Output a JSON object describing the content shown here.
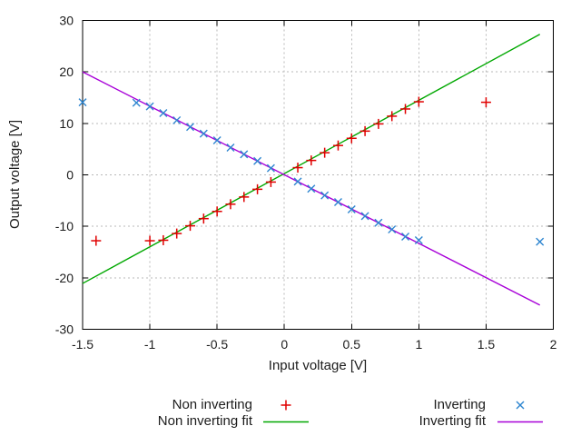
{
  "window": {
    "background": "#ffffff"
  },
  "legend": {
    "entries": [
      {
        "label": "Non inverting",
        "marker": "plus",
        "color": "#e00000"
      },
      {
        "label": "Non inverting fit",
        "marker": "line",
        "color": "#00a800"
      },
      {
        "label": "Inverting",
        "marker": "cross",
        "color": "#2e86d0"
      },
      {
        "label": "Inverting fit",
        "marker": "line",
        "color": "#a800d8"
      }
    ]
  },
  "chart_data": {
    "type": "scatter",
    "title": "",
    "xlabel": "Input voltage [V]",
    "ylabel": "Output voltage [V]",
    "xlim": [
      -1.5,
      2
    ],
    "ylim": [
      -30,
      30
    ],
    "xticks": [
      -1.5,
      -1,
      -0.5,
      0,
      0.5,
      1,
      1.5,
      2
    ],
    "xtick_labels": [
      "-1.5",
      "-1",
      "-0.5",
      "0",
      "0.5",
      "1",
      "1.5",
      "2"
    ],
    "yticks": [
      -30,
      -20,
      -10,
      0,
      10,
      20,
      30
    ],
    "ytick_labels": [
      "-30",
      "-20",
      "-10",
      "0",
      "10",
      "20",
      "30"
    ],
    "grid": true,
    "legend_position": "below-plot",
    "axis_color": "#000000",
    "grid_color": "#b8b8b8",
    "series": [
      {
        "name": "Non inverting",
        "type": "scatter",
        "marker": "plus",
        "color": "#e00000",
        "points": [
          [
            -1.4,
            -12.8
          ],
          [
            -1.0,
            -12.8
          ],
          [
            -0.9,
            -12.7
          ],
          [
            -0.8,
            -11.4
          ],
          [
            -0.7,
            -9.9
          ],
          [
            -0.6,
            -8.5
          ],
          [
            -0.5,
            -7.1
          ],
          [
            -0.4,
            -5.7
          ],
          [
            -0.3,
            -4.3
          ],
          [
            -0.2,
            -2.8
          ],
          [
            -0.1,
            -1.4
          ],
          [
            0.1,
            1.4
          ],
          [
            0.2,
            2.8
          ],
          [
            0.3,
            4.3
          ],
          [
            0.4,
            5.7
          ],
          [
            0.5,
            7.1
          ],
          [
            0.6,
            8.5
          ],
          [
            0.7,
            9.9
          ],
          [
            0.8,
            11.4
          ],
          [
            0.9,
            12.8
          ],
          [
            1.0,
            14.2
          ],
          [
            1.5,
            14.1
          ]
        ]
      },
      {
        "name": "Non inverting fit",
        "type": "line",
        "color": "#00a800",
        "points": [
          [
            -1.5,
            -21.1
          ],
          [
            1.9,
            27.3
          ]
        ]
      },
      {
        "name": "Inverting",
        "type": "scatter",
        "marker": "cross",
        "color": "#2e86d0",
        "points": [
          [
            -1.5,
            14.1
          ],
          [
            -1.1,
            14.0
          ],
          [
            -1.0,
            13.3
          ],
          [
            -0.9,
            12.0
          ],
          [
            -0.8,
            10.6
          ],
          [
            -0.7,
            9.3
          ],
          [
            -0.6,
            8.0
          ],
          [
            -0.5,
            6.7
          ],
          [
            -0.4,
            5.3
          ],
          [
            -0.3,
            4.0
          ],
          [
            -0.2,
            2.7
          ],
          [
            -0.1,
            1.3
          ],
          [
            0.1,
            -1.3
          ],
          [
            0.2,
            -2.7
          ],
          [
            0.3,
            -4.0
          ],
          [
            0.4,
            -5.3
          ],
          [
            0.5,
            -6.7
          ],
          [
            0.6,
            -8.0
          ],
          [
            0.7,
            -9.3
          ],
          [
            0.8,
            -10.6
          ],
          [
            0.9,
            -12.0
          ],
          [
            1.0,
            -12.7
          ],
          [
            1.9,
            -13.0
          ]
        ]
      },
      {
        "name": "Inverting fit",
        "type": "line",
        "color": "#a800d8",
        "points": [
          [
            -1.5,
            20.0
          ],
          [
            1.9,
            -25.3
          ]
        ]
      }
    ]
  }
}
